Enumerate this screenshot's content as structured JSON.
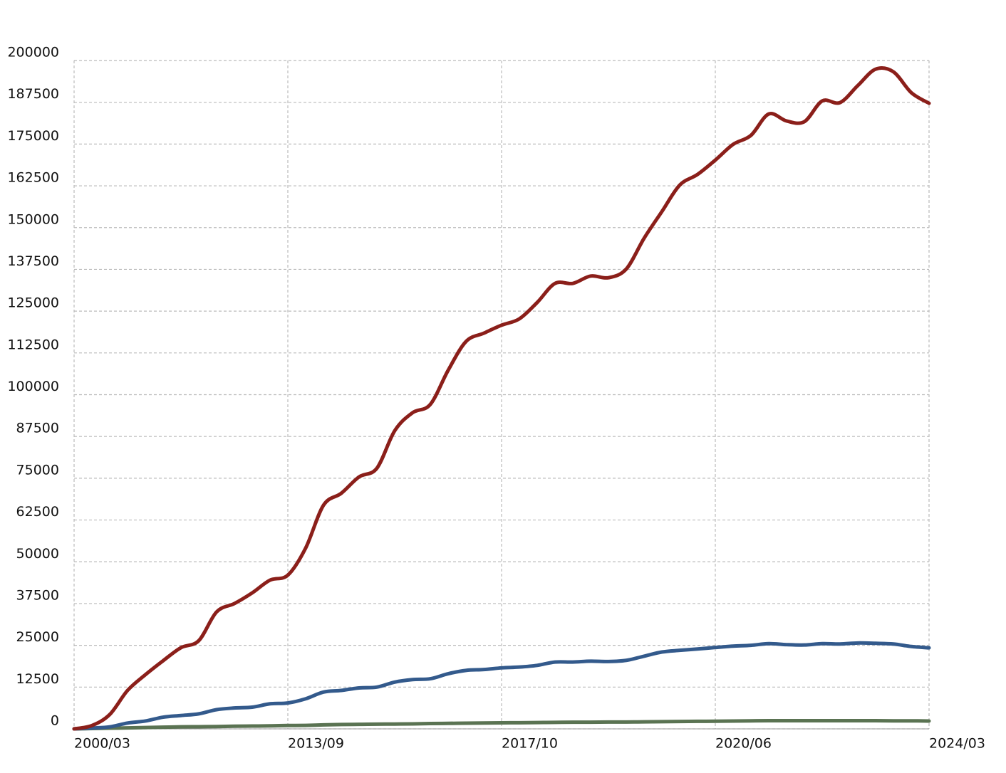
{
  "chart_data": {
    "type": "line",
    "categories": [
      "2000/03",
      null,
      null,
      null,
      null,
      null,
      null,
      null,
      null,
      null,
      null,
      null,
      "2013/09",
      null,
      null,
      null,
      null,
      null,
      null,
      null,
      null,
      null,
      null,
      null,
      "2017/10",
      null,
      null,
      null,
      null,
      null,
      null,
      null,
      null,
      null,
      null,
      null,
      "2020/06",
      null,
      null,
      null,
      null,
      null,
      null,
      null,
      null,
      null,
      null,
      null,
      "2024/03"
    ],
    "series": [
      {
        "color": "#8b1f1a",
        "values": [
          0,
          1000,
          4300,
          11500,
          16200,
          20400,
          24300,
          26400,
          35000,
          37500,
          40700,
          44500,
          46000,
          54100,
          66900,
          70500,
          75400,
          78000,
          89200,
          94600,
          97100,
          107300,
          115900,
          118400,
          120800,
          122700,
          127600,
          133300,
          133300,
          135500,
          135000,
          137600,
          146800,
          154800,
          162700,
          165900,
          170200,
          174900,
          177600,
          184000,
          181900,
          181700,
          187900,
          187400,
          192500,
          197400,
          196600,
          190400,
          187200
        ]
      },
      {
        "color": "#335a8c",
        "values": [
          0,
          250,
          600,
          1750,
          2350,
          3500,
          4000,
          4500,
          5750,
          6250,
          6500,
          7500,
          7750,
          9000,
          11000,
          11500,
          12250,
          12500,
          14000,
          14750,
          15000,
          16500,
          17500,
          17750,
          18250,
          18500,
          19000,
          20000,
          20000,
          20250,
          20150,
          20500,
          21750,
          23000,
          23500,
          23900,
          24350,
          24750,
          25000,
          25500,
          25200,
          25100,
          25500,
          25400,
          25700,
          25600,
          25400,
          24650,
          24250
        ]
      },
      {
        "color": "#5a7352",
        "values": [
          0,
          100,
          200,
          300,
          400,
          500,
          600,
          650,
          700,
          800,
          850,
          900,
          1000,
          1050,
          1200,
          1300,
          1350,
          1400,
          1450,
          1500,
          1600,
          1650,
          1700,
          1750,
          1800,
          1850,
          1900,
          1950,
          2000,
          2000,
          2050,
          2050,
          2100,
          2150,
          2200,
          2250,
          2300,
          2350,
          2400,
          2450,
          2450,
          2450,
          2450,
          2450,
          2450,
          2450,
          2400,
          2400,
          2350
        ]
      }
    ],
    "ylim": [
      0,
      200000
    ],
    "yticks": [
      0,
      12500,
      25000,
      37500,
      50000,
      62500,
      75000,
      87500,
      100000,
      112500,
      125000,
      137500,
      150000,
      162500,
      175000,
      187500,
      200000
    ],
    "grid": true
  }
}
